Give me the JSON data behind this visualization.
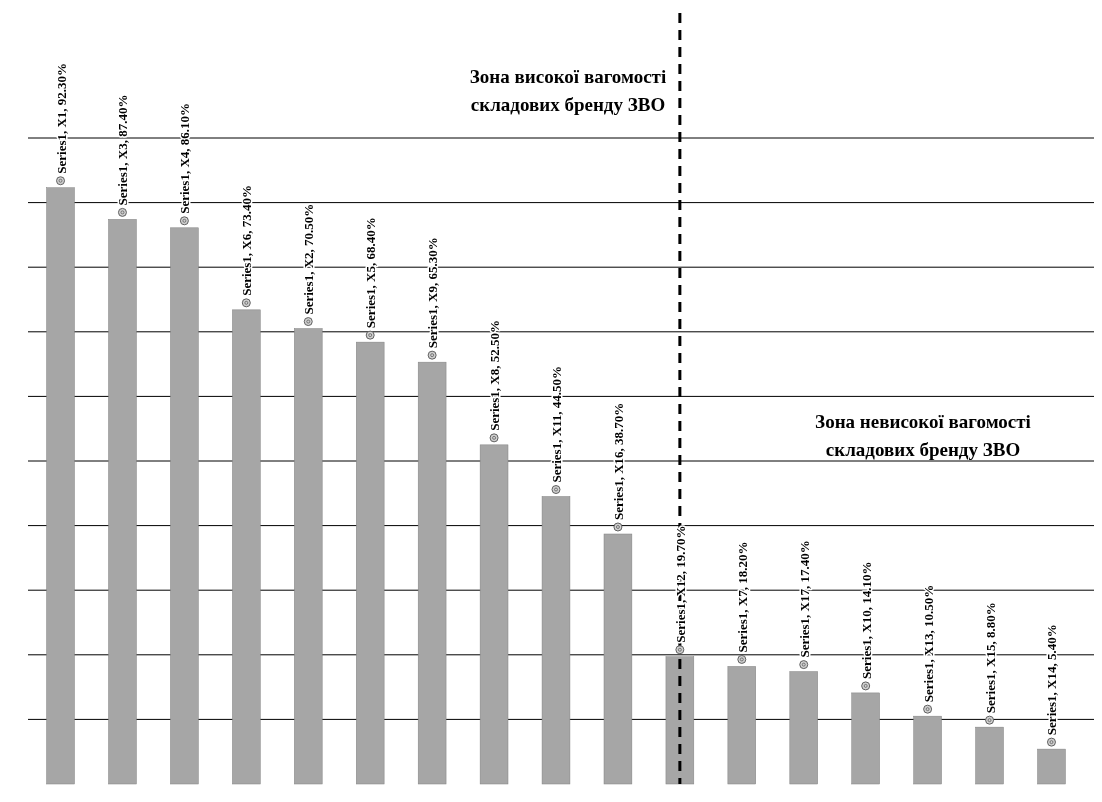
{
  "chart_data": {
    "type": "bar",
    "categories": [
      null,
      null,
      null,
      null,
      null,
      null,
      null,
      null,
      null,
      null,
      null,
      null,
      null,
      null,
      null,
      null,
      null
    ],
    "series": [
      {
        "color": "#a6a6a6",
        "values": [
          92.3,
          87.4,
          86.1,
          73.4,
          70.5,
          68.4,
          65.3,
          52.5,
          44.5,
          38.7,
          19.7,
          18.2,
          17.4,
          14.1,
          10.5,
          8.8,
          5.4
        ],
        "value_labels": [
          "Series1, X1, 92.30%",
          "Series1, X3, 87.40%",
          "Series1, X4, 86.10%",
          "Series1, X6, 73.40%",
          "Series1, X2, 70.50%",
          "Series1, X5, 68.40%",
          "Series1, X9, 65.30%",
          "Series1, X8, 52.50%",
          "Series1, X11, 44.50%",
          "Series1, X16, 38.70%",
          "Series1, X12, 19.70%",
          "Series1, X7, 18.20%",
          "Series1, X17, 17.40%",
          "Series1, X10, 14.10%",
          "Series1, X13, 10.50%",
          "Series1, X15, 8.80%",
          "Series1, X14, 5.40%"
        ]
      }
    ],
    "ylim": [
      0,
      100
    ],
    "yticks": [
      10,
      20,
      30,
      40,
      50,
      60,
      70,
      80,
      90,
      100
    ],
    "grid": "y",
    "tick_labels": false,
    "annotations": [
      "Зона високої вагомості складових бренду ЗВО",
      "Зона невисокої вагомості складових бренду ЗВО"
    ]
  }
}
